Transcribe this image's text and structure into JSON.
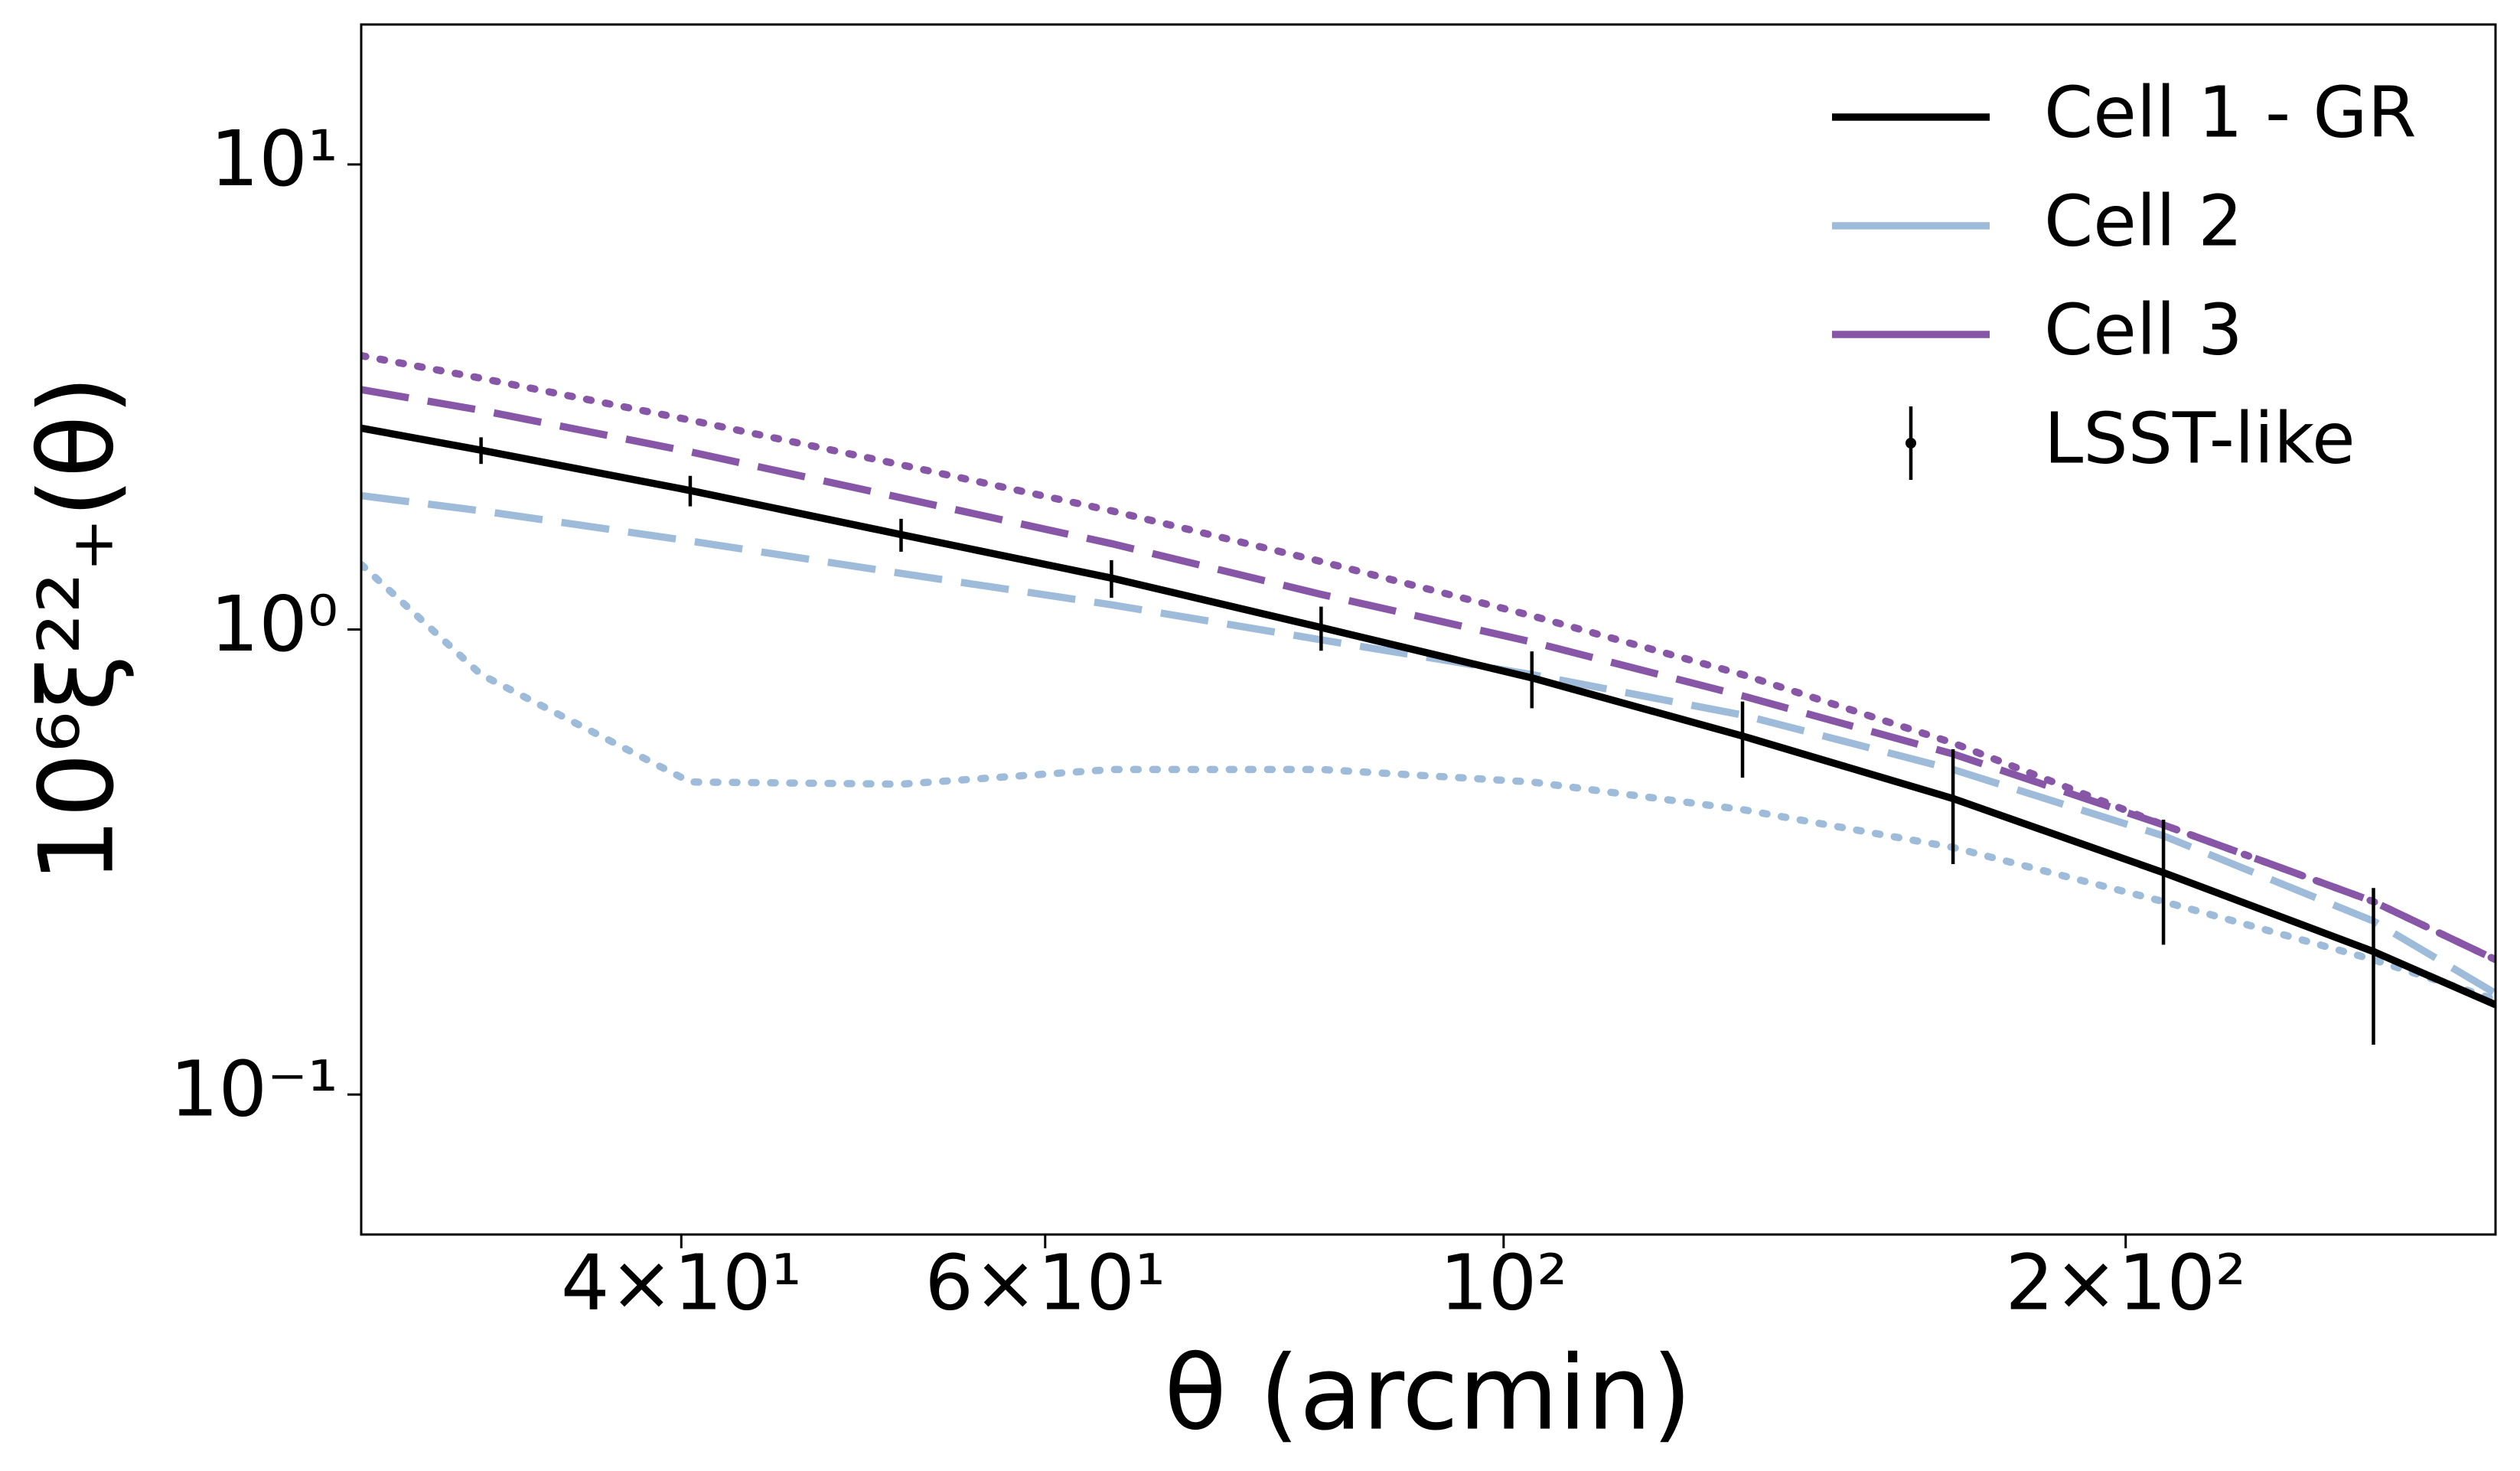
{
  "chart_data": {
    "type": "line",
    "xlabel": "θ (arcmin)",
    "ylabel": "10⁶ξ²²₊(θ)",
    "xscale": "log",
    "yscale": "log",
    "xlim": [
      28,
      302
    ],
    "ylim": [
      0.05,
      20
    ],
    "xticks": [
      {
        "value": 40,
        "label": "4×10¹"
      },
      {
        "value": 60,
        "label": "6×10¹"
      },
      {
        "value": 100,
        "label": "10²"
      },
      {
        "value": 200,
        "label": "2×10²"
      }
    ],
    "yticks": [
      {
        "value": 0.1,
        "label": "10⁻¹"
      },
      {
        "value": 1,
        "label": "10⁰"
      },
      {
        "value": 10,
        "label": "10¹"
      }
    ],
    "legend": "upper right",
    "x": [
      28,
      32,
      40.4,
      51.1,
      64.6,
      81.6,
      103.2,
      130.5,
      165,
      208.6,
      263.6,
      302
    ],
    "series": [
      {
        "name": "Cell 1 - GR",
        "color": "#000000",
        "dash": "solid",
        "values": [
          2.71,
          2.43,
          1.99,
          1.6,
          1.29,
          1.01,
          0.787,
          0.59,
          0.433,
          0.3,
          0.203,
          0.156
        ]
      },
      {
        "name": "Cell 2",
        "color": "#9ebcda",
        "dash": "dashed",
        "values": [
          1.94,
          1.8,
          1.55,
          1.32,
          1.13,
          0.95,
          0.8,
          0.655,
          0.5,
          0.36,
          0.236,
          0.165
        ],
        "dotted_values": [
          1.38,
          0.8,
          0.47,
          0.465,
          0.5,
          0.5,
          0.47,
          0.41,
          0.34,
          0.26,
          0.195,
          0.16
        ]
      },
      {
        "name": "Cell 3",
        "color": "#8856a7",
        "dash": "dashed",
        "values": [
          3.28,
          2.96,
          2.41,
          1.92,
          1.53,
          1.19,
          0.94,
          0.72,
          0.54,
          0.38,
          0.26,
          0.195
        ],
        "dotted_values": [
          3.88,
          3.47,
          2.82,
          2.26,
          1.8,
          1.4,
          1.07,
          0.8,
          0.57,
          0.38,
          0.26,
          0.195
        ]
      }
    ],
    "errorbars": {
      "name": "LSST-like",
      "color": "#000000",
      "values": [
        null,
        2.43,
        1.99,
        1.6,
        1.29,
        1.01,
        0.787,
        0.59,
        0.433,
        0.3,
        0.203,
        null
      ],
      "errors": [
        null,
        0.16,
        0.15,
        0.13,
        0.12,
        0.11,
        0.11,
        0.11,
        0.12,
        0.09,
        0.075,
        null
      ]
    }
  }
}
